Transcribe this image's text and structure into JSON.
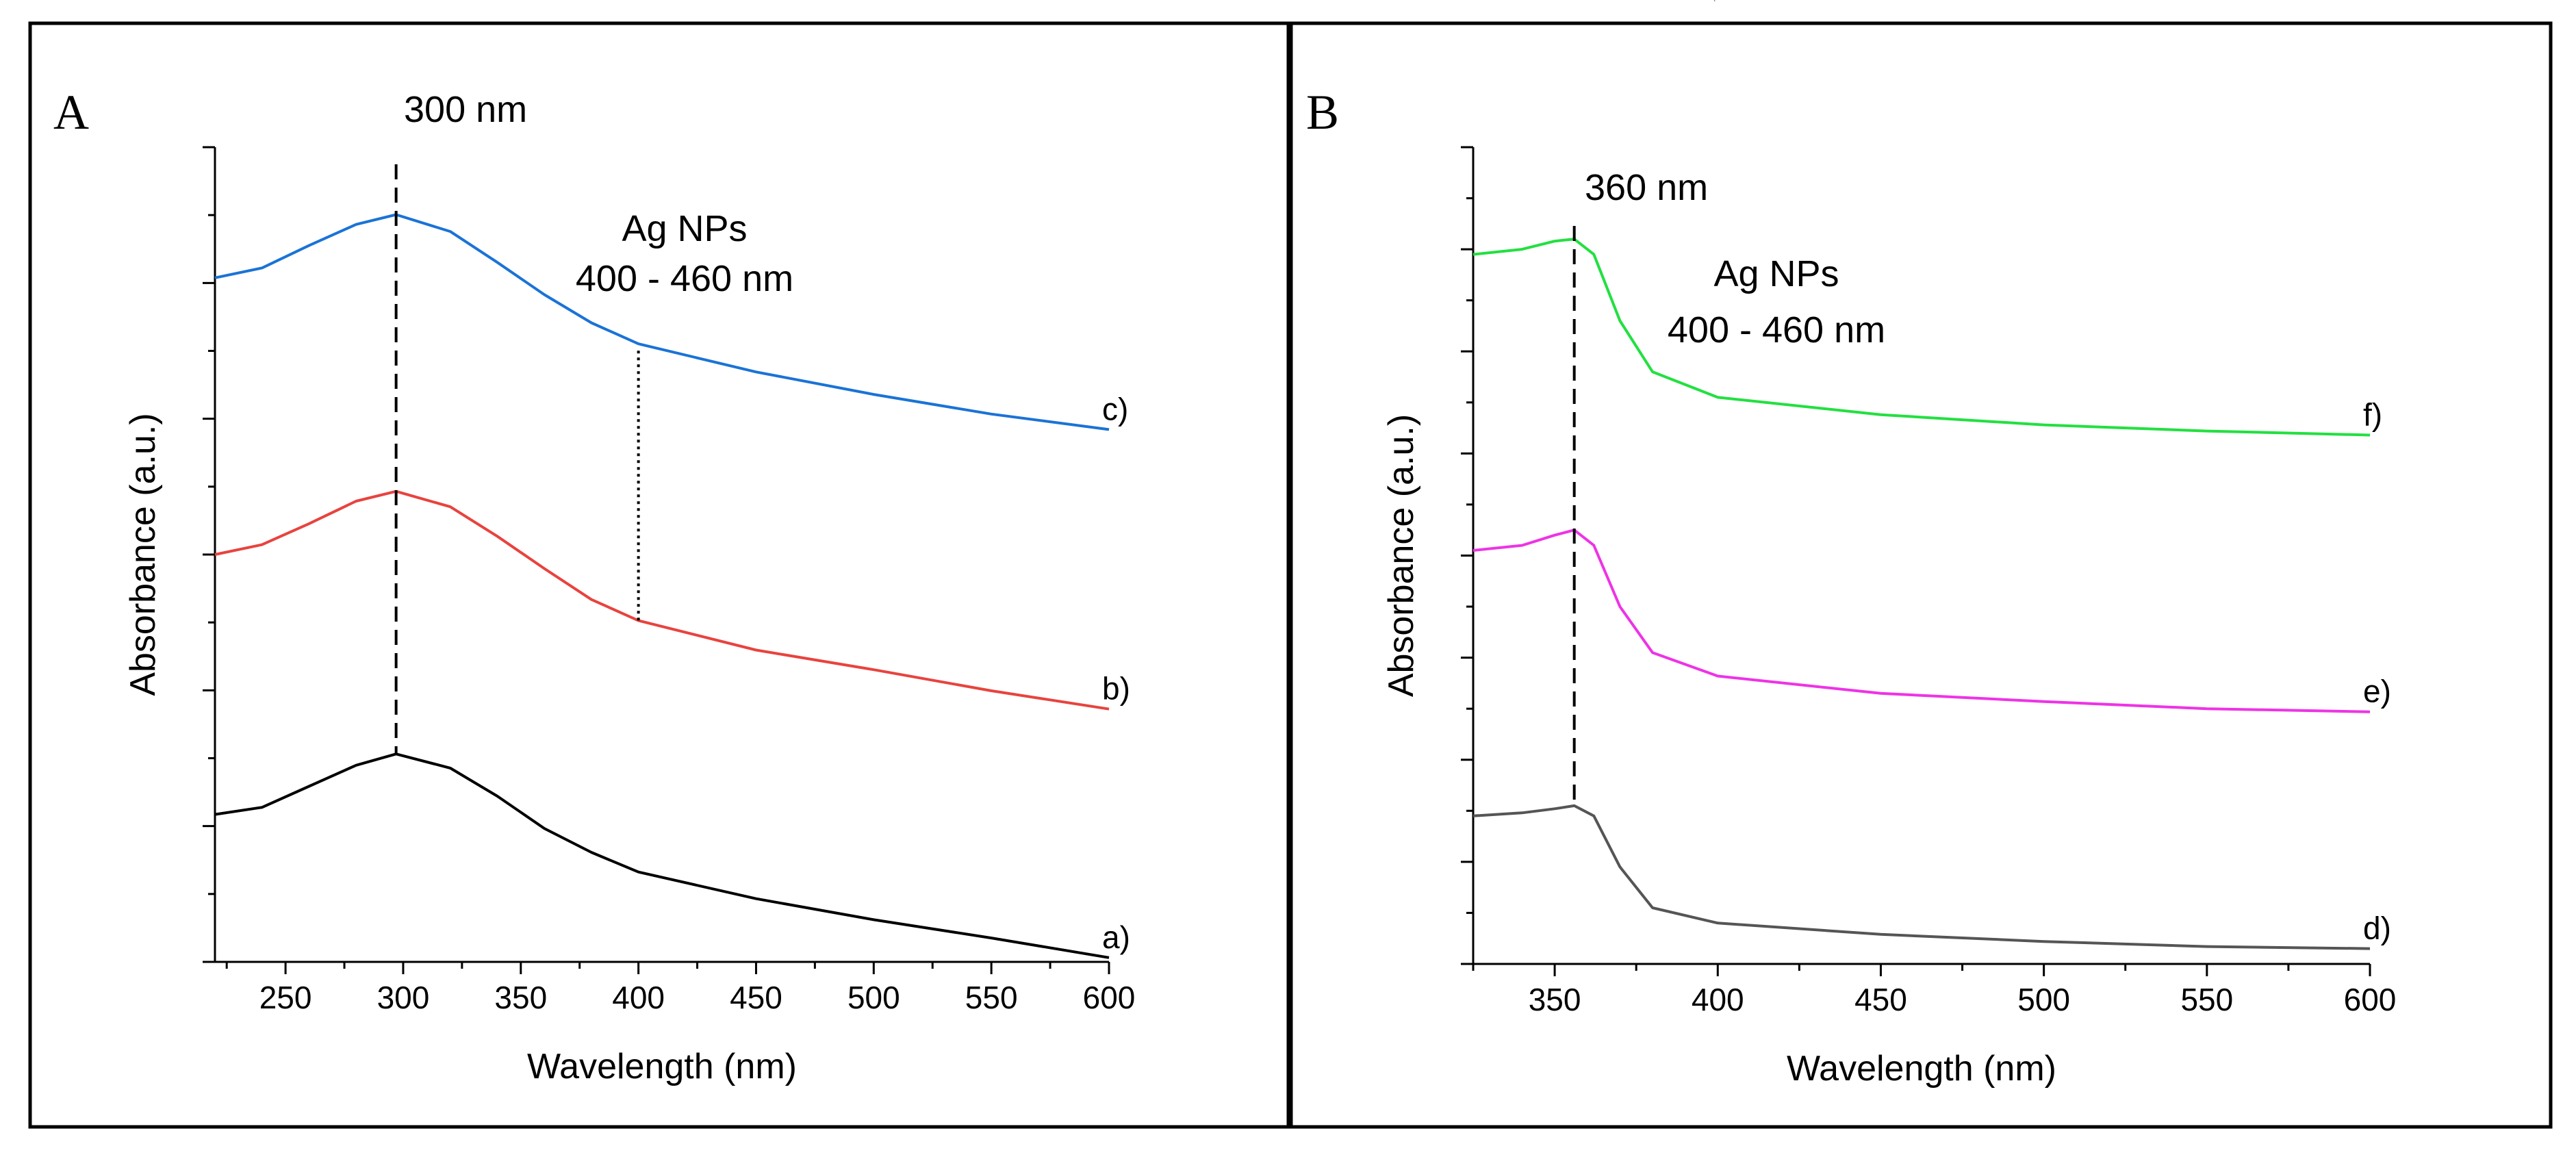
{
  "chart_data": [
    {
      "panel": "A",
      "type": "line",
      "title": "",
      "xlabel": "Wavelength (nm)",
      "ylabel": "Absorbance (a.u.)",
      "xlim": [
        220,
        600
      ],
      "xticks": [
        250,
        300,
        350,
        400,
        450,
        500,
        550,
        600
      ],
      "ylim": [
        0,
        5.8
      ],
      "y_ticks_labeled": false,
      "grid": false,
      "annotations": {
        "peak_label": "300 nm",
        "peak_x": 297,
        "band_title": "Ag NPs",
        "band_range": "400 - 460 nm",
        "band_x": 400
      },
      "series": [
        {
          "name": "a)",
          "color": "#000000",
          "x": [
            220,
            240,
            260,
            280,
            297,
            320,
            340,
            360,
            380,
            400,
            450,
            500,
            550,
            600
          ],
          "y": [
            1.05,
            1.1,
            1.25,
            1.4,
            1.48,
            1.38,
            1.18,
            0.95,
            0.78,
            0.64,
            0.45,
            0.3,
            0.17,
            0.03
          ]
        },
        {
          "name": "b)",
          "color": "#e8433e",
          "x": [
            220,
            240,
            260,
            280,
            297,
            320,
            340,
            360,
            380,
            400,
            450,
            500,
            550,
            600
          ],
          "y": [
            2.9,
            2.97,
            3.12,
            3.28,
            3.35,
            3.24,
            3.03,
            2.8,
            2.58,
            2.43,
            2.22,
            2.08,
            1.93,
            1.8
          ]
        },
        {
          "name": "c)",
          "color": "#1a73d6",
          "x": [
            220,
            240,
            260,
            280,
            297,
            320,
            340,
            360,
            380,
            400,
            450,
            500,
            550,
            600
          ],
          "y": [
            4.87,
            4.94,
            5.1,
            5.25,
            5.32,
            5.2,
            4.98,
            4.75,
            4.55,
            4.4,
            4.2,
            4.04,
            3.9,
            3.79
          ]
        }
      ]
    },
    {
      "panel": "B",
      "type": "line",
      "title": "",
      "xlabel": "Wavelength (nm)",
      "ylabel": "Absorbance (a.u.)",
      "xlim": [
        325,
        600
      ],
      "xticks": [
        350,
        400,
        450,
        500,
        550,
        600
      ],
      "ylim": [
        0,
        8
      ],
      "y_ticks_labeled": false,
      "grid": false,
      "annotations": {
        "peak_label": "360 nm",
        "peak_x": 356,
        "band_title": "Ag NPs",
        "band_range": "400 - 460 nm",
        "band_x": 399
      },
      "series": [
        {
          "name": "d)",
          "color": "#555555",
          "x": [
            325,
            340,
            350,
            356,
            362,
            370,
            380,
            400,
            450,
            500,
            550,
            600
          ],
          "y": [
            1.45,
            1.48,
            1.52,
            1.55,
            1.45,
            0.95,
            0.55,
            0.4,
            0.29,
            0.22,
            0.17,
            0.15
          ]
        },
        {
          "name": "e)",
          "color": "#ee33e6",
          "x": [
            325,
            340,
            350,
            356,
            362,
            370,
            380,
            400,
            450,
            500,
            550,
            600
          ],
          "y": [
            4.05,
            4.1,
            4.2,
            4.25,
            4.1,
            3.5,
            3.05,
            2.82,
            2.65,
            2.57,
            2.5,
            2.47
          ]
        },
        {
          "name": "f)",
          "color": "#22e040",
          "x": [
            325,
            340,
            350,
            356,
            362,
            370,
            380,
            400,
            450,
            500,
            550,
            600
          ],
          "y": [
            6.95,
            7.0,
            7.08,
            7.1,
            6.95,
            6.3,
            5.8,
            5.55,
            5.38,
            5.28,
            5.22,
            5.18
          ]
        }
      ]
    }
  ]
}
